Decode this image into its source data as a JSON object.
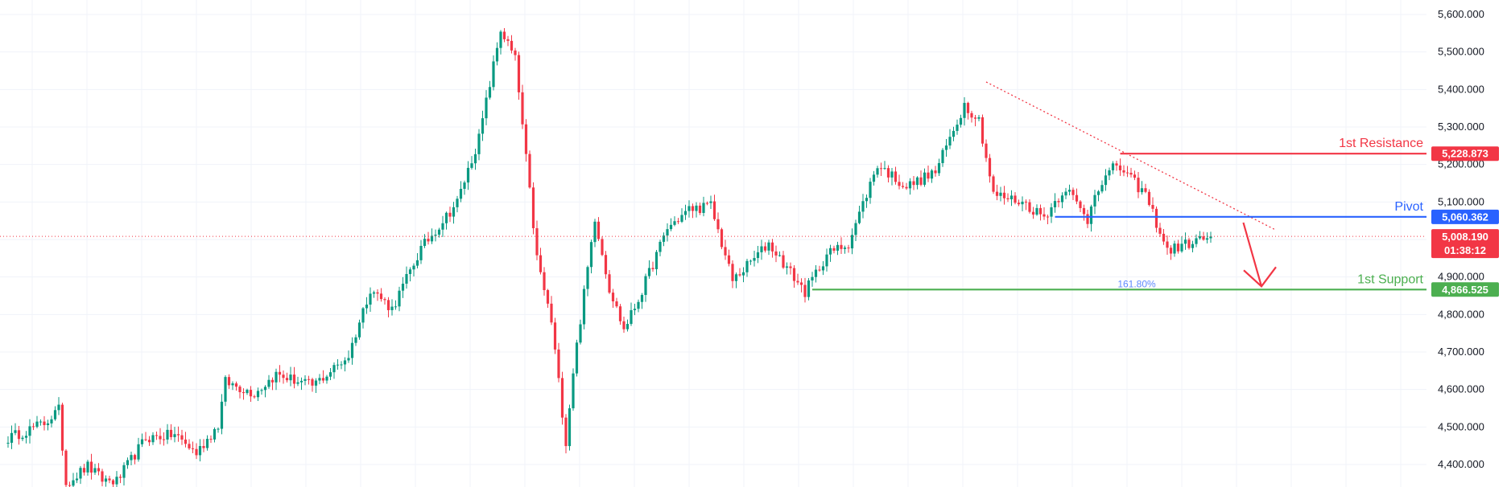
{
  "chart_data": {
    "type": "candlestick",
    "y_axis": {
      "ylim": [
        4380,
        5625
      ],
      "ticks": [
        4400,
        4500,
        4600,
        4700,
        4800,
        4900,
        5000,
        5100,
        5200,
        5300,
        5400,
        5500,
        5600
      ],
      "tick_labels": [
        "4,400.000",
        "4,500.000",
        "4,600.000",
        "4,700.000",
        "4,800.000",
        "4,900.000",
        "5,000.000",
        "5,100.000",
        "5,200.000",
        "5,300.000",
        "5,400.000",
        "5,500.000",
        "5,600.000"
      ],
      "position": "right"
    },
    "grid": true,
    "candle_count": 300,
    "colors": {
      "up": "#089981",
      "down": "#f23645",
      "resistance": "#f23645",
      "pivot": "#2962ff",
      "support": "#4caf50",
      "grid": "#f0f3fa",
      "axis_text": "#131722",
      "arrow": "#f23645",
      "trendline": "#f23645",
      "fib": "#2962ff"
    },
    "anchor_closes": [
      [
        0,
        4470
      ],
      [
        10,
        4510
      ],
      [
        14,
        4545
      ],
      [
        16,
        4350
      ],
      [
        22,
        4395
      ],
      [
        26,
        4360
      ],
      [
        30,
        4355
      ],
      [
        38,
        4470
      ],
      [
        46,
        4480
      ],
      [
        52,
        4430
      ],
      [
        58,
        4505
      ],
      [
        60,
        4620
      ],
      [
        68,
        4590
      ],
      [
        74,
        4640
      ],
      [
        84,
        4610
      ],
      [
        88,
        4640
      ],
      [
        94,
        4690
      ],
      [
        100,
        4870
      ],
      [
        106,
        4815
      ],
      [
        114,
        4975
      ],
      [
        124,
        5100
      ],
      [
        130,
        5270
      ],
      [
        136,
        5560
      ],
      [
        140,
        5480
      ],
      [
        146,
        4950
      ],
      [
        150,
        4780
      ],
      [
        154,
        4460
      ],
      [
        156,
        4650
      ],
      [
        162,
        5060
      ],
      [
        166,
        4870
      ],
      [
        170,
        4760
      ],
      [
        174,
        4840
      ],
      [
        182,
        5030
      ],
      [
        188,
        5080
      ],
      [
        194,
        5090
      ],
      [
        200,
        4890
      ],
      [
        210,
        4990
      ],
      [
        220,
        4860
      ],
      [
        226,
        4960
      ],
      [
        232,
        4990
      ],
      [
        240,
        5200
      ],
      [
        248,
        5140
      ],
      [
        256,
        5180
      ],
      [
        264,
        5360
      ],
      [
        268,
        5320
      ],
      [
        272,
        5120
      ],
      [
        280,
        5100
      ],
      [
        286,
        5060
      ],
      [
        292,
        5140
      ],
      [
        298,
        5050
      ],
      [
        300,
        5130
      ],
      [
        306,
        5200
      ],
      [
        314,
        5120
      ],
      [
        320,
        4970
      ],
      [
        326,
        4990
      ],
      [
        332,
        5008
      ]
    ],
    "last_price": 5008.19,
    "last_price_label": "5,008.190",
    "countdown": "01:38:12",
    "levels": [
      {
        "id": "resistance",
        "name": "1st Resistance",
        "value": 5228.873,
        "value_label": "5,228.873",
        "start_index": 307
      },
      {
        "id": "pivot",
        "name": "Pivot",
        "value": 5060.362,
        "value_label": "5,060.362",
        "start_index": 289
      },
      {
        "id": "support",
        "name": "1st Support",
        "value": 4866.525,
        "value_label": "4,866.525",
        "start_index": 222
      }
    ],
    "fib_label": "161.80%",
    "trendline": {
      "from": [
        270,
        5420
      ],
      "to": [
        350,
        5025
      ]
    },
    "projection_arrow": {
      "from": [
        341,
        5045
      ],
      "to": [
        346,
        4875
      ]
    }
  }
}
